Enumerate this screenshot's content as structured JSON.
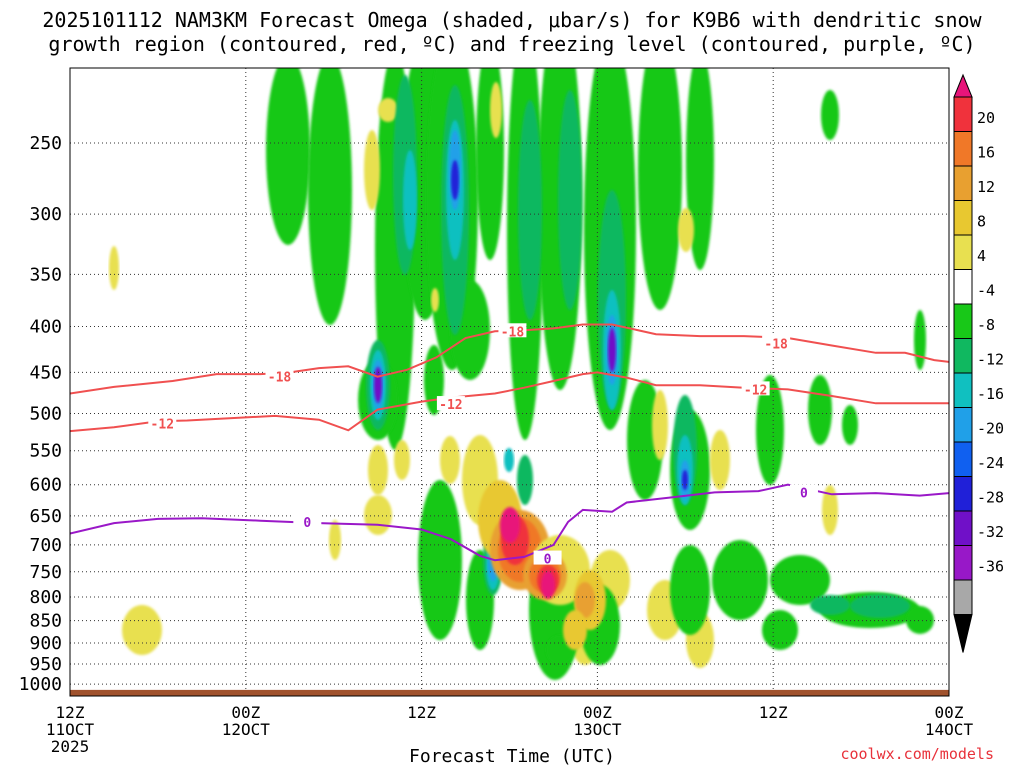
{
  "title": {
    "line1": "2025101112 NAM3KM Forecast Omega (shaded, μbar/s) for K9B6 with dendritic snow",
    "line2": "growth region (contoured, red, ºC) and freezing level (contoured, purple, ºC)"
  },
  "credit": "coolwx.com/models",
  "chart_data": {
    "type": "heatmap",
    "title": "2025101112 NAM3KM Forecast Omega (shaded, μbar/s) for K9B6 with dendritic snow growth region (contoured, red, ºC) and freezing level (contoured, purple, ºC)",
    "xlabel": "Forecast Time (UTC)",
    "ylabel": "",
    "x_ticks": [
      {
        "hour": 0,
        "line1": "12Z",
        "line2": "11OCT",
        "line3": "2025"
      },
      {
        "hour": 12,
        "line1": "00Z",
        "line2": "12OCT",
        "line3": ""
      },
      {
        "hour": 24,
        "line1": "12Z",
        "line2": "",
        "line3": ""
      },
      {
        "hour": 36,
        "line1": "00Z",
        "line2": "13OCT",
        "line3": ""
      },
      {
        "hour": 48,
        "line1": "12Z",
        "line2": "",
        "line3": ""
      },
      {
        "hour": 60,
        "line1": "00Z",
        "line2": "14OCT",
        "line3": ""
      }
    ],
    "xlim": [
      0,
      60
    ],
    "y_scale": "log-pressure",
    "ylim": [
      1030,
      200
    ],
    "y_ticks": [
      250,
      300,
      350,
      400,
      450,
      500,
      550,
      600,
      650,
      700,
      750,
      800,
      850,
      900,
      950,
      1000
    ],
    "grid": "dotted",
    "colorbar": {
      "position": "right",
      "labels": [
        "20",
        "16",
        "12",
        "8",
        "4",
        "-4",
        "-8",
        "-12",
        "-16",
        "-20",
        "-24",
        "-28",
        "-32",
        "-36"
      ],
      "colors": [
        "#e8147a",
        "#f0323c",
        "#f07828",
        "#e8a030",
        "#e8c830",
        "#e8e050",
        "#ffffff",
        "#18c818",
        "#10b860",
        "#10c0c0",
        "#20a0e8",
        "#1060f0",
        "#2020d8",
        "#7010c8",
        "#9818c8",
        "#a8a8a8",
        "#000000"
      ]
    },
    "contours": [
      {
        "series": "dendritic snow growth region",
        "color": "#f05050",
        "value": "-18",
        "points": [
          [
            0,
            475
          ],
          [
            3,
            467
          ],
          [
            7,
            460
          ],
          [
            10,
            452
          ],
          [
            12,
            452
          ],
          [
            13,
            452
          ],
          [
            15,
            450
          ],
          [
            17,
            445
          ],
          [
            19,
            443
          ],
          [
            21,
            455
          ],
          [
            23,
            447
          ],
          [
            25,
            433
          ],
          [
            27,
            412
          ],
          [
            29,
            405
          ],
          [
            31,
            404
          ],
          [
            33,
            402
          ],
          [
            35,
            398
          ],
          [
            37,
            398
          ],
          [
            40,
            408
          ],
          [
            43,
            410
          ],
          [
            46,
            410
          ],
          [
            49,
            412
          ],
          [
            52,
            420
          ],
          [
            55,
            428
          ],
          [
            57,
            428
          ],
          [
            59,
            436
          ],
          [
            60,
            438
          ]
        ],
        "labels": [
          {
            "hour": 14.3,
            "p": 455
          },
          {
            "hour": 30.2,
            "p": 405
          },
          {
            "hour": 48.2,
            "p": 418
          }
        ]
      },
      {
        "series": "dendritic snow growth region",
        "color": "#f05050",
        "value": "-12",
        "points": [
          [
            0,
            523
          ],
          [
            3,
            518
          ],
          [
            6,
            510
          ],
          [
            8,
            509
          ],
          [
            12,
            505
          ],
          [
            14,
            503
          ],
          [
            17,
            508
          ],
          [
            19,
            522
          ],
          [
            21,
            495
          ],
          [
            24,
            485
          ],
          [
            26,
            480
          ],
          [
            29,
            475
          ],
          [
            31,
            468
          ],
          [
            33,
            460
          ],
          [
            35,
            452
          ],
          [
            36,
            450
          ],
          [
            38,
            456
          ],
          [
            40,
            465
          ],
          [
            43,
            465
          ],
          [
            46,
            468
          ],
          [
            49,
            470
          ],
          [
            52,
            478
          ],
          [
            55,
            487
          ],
          [
            58,
            487
          ],
          [
            60,
            487
          ]
        ],
        "labels": [
          {
            "hour": 6.3,
            "p": 513
          },
          {
            "hour": 26,
            "p": 488
          },
          {
            "hour": 46.8,
            "p": 470
          }
        ]
      },
      {
        "series": "freezing level",
        "color": "#9a18c8",
        "value": "0",
        "points": [
          [
            0,
            680
          ],
          [
            3,
            662
          ],
          [
            6,
            655
          ],
          [
            9,
            654
          ],
          [
            13,
            658
          ],
          [
            17,
            662
          ],
          [
            21,
            665
          ],
          [
            24,
            673
          ],
          [
            26,
            690
          ],
          [
            28,
            720
          ],
          [
            29,
            728
          ],
          [
            31,
            722
          ],
          [
            33,
            700
          ],
          [
            34,
            660
          ],
          [
            35,
            640
          ],
          [
            37,
            643
          ],
          [
            38,
            628
          ],
          [
            41,
            620
          ],
          [
            44,
            612
          ],
          [
            47,
            610
          ],
          [
            49,
            600
          ],
          [
            52,
            615
          ],
          [
            55,
            613
          ],
          [
            58,
            617
          ],
          [
            60,
            613
          ]
        ],
        "labels": [
          {
            "hour": 16.2,
            "p": 660
          },
          {
            "hour": 32.6,
            "p": 725
          },
          {
            "hour": 50.1,
            "p": 612
          }
        ]
      }
    ],
    "terrain": {
      "color": "#a0522d",
      "surface_p": 1015
    }
  }
}
